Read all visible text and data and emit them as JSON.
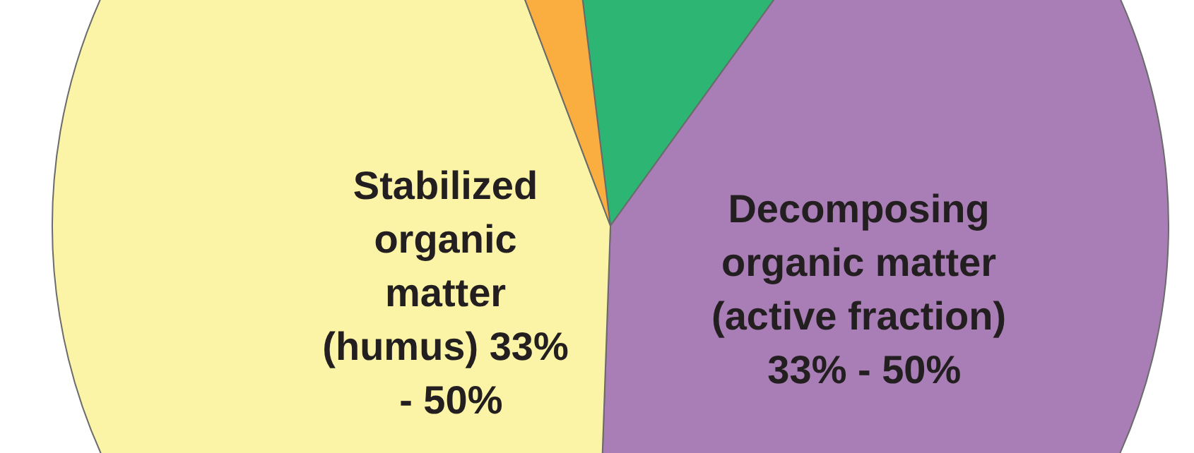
{
  "chart_data": {
    "type": "pie",
    "categories": [
      null,
      "Decomposing organic matter (active fraction) 33% - 50%",
      "Stabilized organic matter (humus) 33% - 50%",
      null
    ],
    "values": [
      11.9,
      40.6,
      43.7,
      3.8
    ],
    "colors": [
      "#2db573",
      "#a97db5",
      "#fbf4a6",
      "#f9ae3f"
    ],
    "legend": false
  }
}
